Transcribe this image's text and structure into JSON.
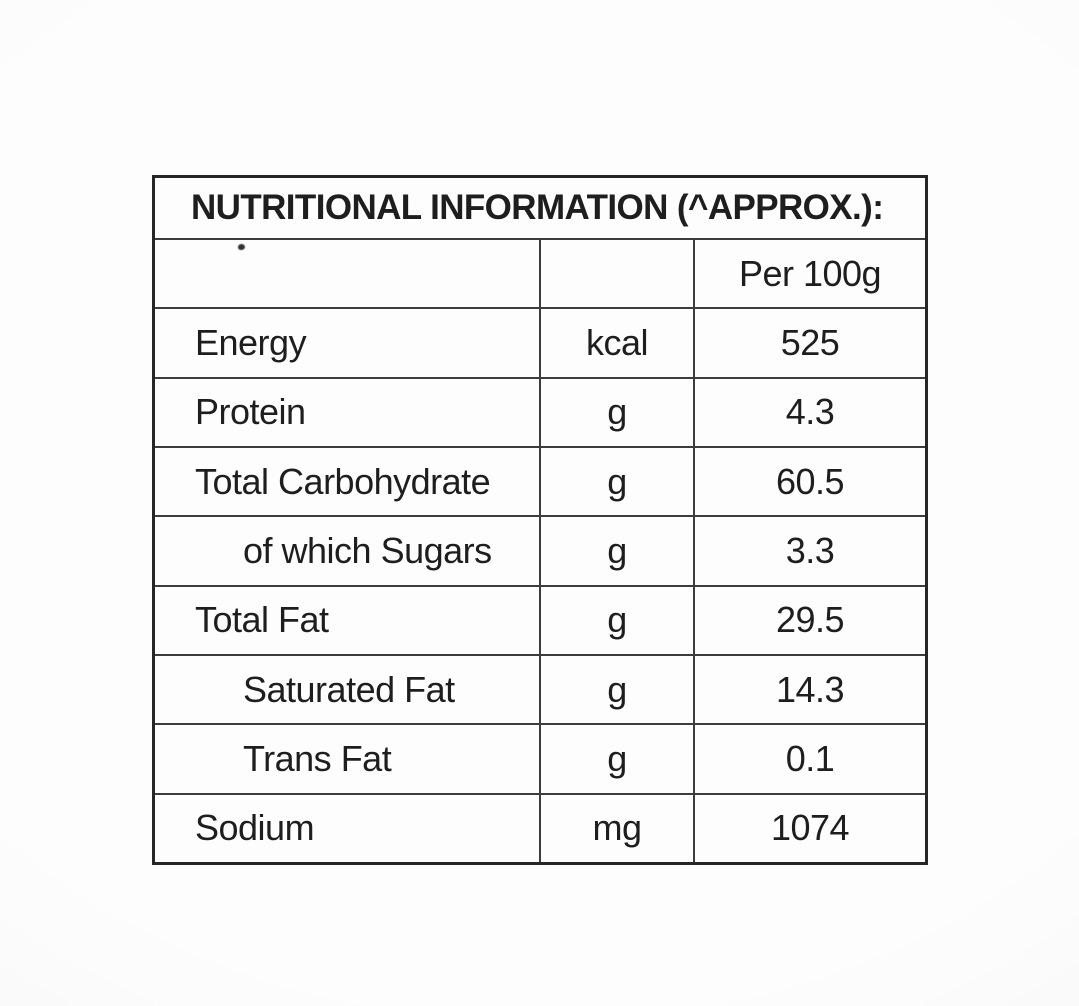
{
  "label": {
    "title": "NUTRITIONAL INFORMATION (^APPROX.):",
    "header": {
      "nutrient": "",
      "unit": "",
      "per_column": "Per 100g"
    },
    "rows": [
      {
        "nutrient": "Energy",
        "unit": "kcal",
        "value": "525",
        "indent": false
      },
      {
        "nutrient": "Protein",
        "unit": "g",
        "value": "4.3",
        "indent": false
      },
      {
        "nutrient": "Total Carbohydrate",
        "unit": "g",
        "value": "60.5",
        "indent": false
      },
      {
        "nutrient": "of which Sugars",
        "unit": "g",
        "value": "3.3",
        "indent": true
      },
      {
        "nutrient": "Total Fat",
        "unit": "g",
        "value": "29.5",
        "indent": false
      },
      {
        "nutrient": "Saturated Fat",
        "unit": "g",
        "value": "14.3",
        "indent": true
      },
      {
        "nutrient": "Trans Fat",
        "unit": "g",
        "value": "0.1",
        "indent": true
      },
      {
        "nutrient": "Sodium",
        "unit": "mg",
        "value": "1074",
        "indent": false
      }
    ],
    "colors": {
      "border_outer": "#262626",
      "border_inner": "#3c3c3c",
      "text": "#1e1e1e",
      "cell_background": "#fdfdfd",
      "page_background": "#f1f1f2"
    }
  }
}
